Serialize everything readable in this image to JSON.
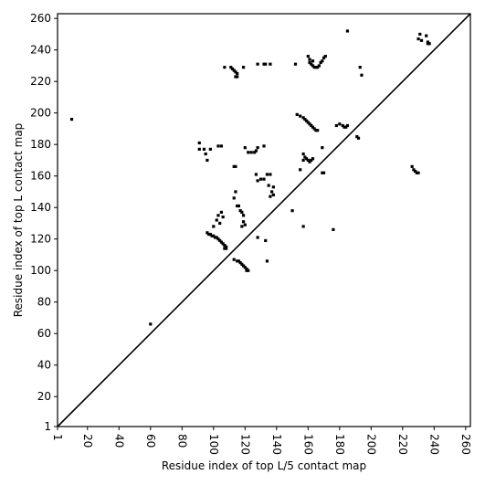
{
  "chart_data": {
    "type": "scatter",
    "xlabel": "Residue index of top L/5 contact map",
    "ylabel": "Residue index of top L contact map",
    "xlim": [
      1,
      263
    ],
    "ylim": [
      1,
      263
    ],
    "xticks": [
      1,
      20,
      40,
      60,
      80,
      100,
      120,
      140,
      160,
      180,
      200,
      220,
      240,
      260
    ],
    "yticks": [
      1,
      20,
      40,
      60,
      80,
      100,
      120,
      140,
      160,
      180,
      200,
      220,
      240,
      260
    ],
    "series": [
      {
        "color": "#000000",
        "marker": "square",
        "x": [
          10,
          60,
          96,
          97,
          98,
          99,
          100,
          101,
          102,
          103,
          104,
          105,
          106,
          107,
          108,
          108,
          107,
          100,
          102,
          103,
          105,
          106,
          104,
          113,
          115,
          116,
          117,
          118,
          119,
          120,
          121,
          122,
          121,
          115,
          116,
          117,
          118,
          119,
          119,
          120,
          118,
          113,
          114,
          114,
          113,
          128,
          133,
          134,
          103,
          105,
          91,
          91,
          94,
          95,
          96,
          98,
          120,
          122,
          124,
          126,
          128,
          132,
          127,
          127,
          130,
          128,
          132,
          134,
          136,
          135,
          137,
          138,
          138,
          136,
          150,
          153,
          155,
          157,
          158,
          159,
          160,
          161,
          162,
          163,
          164,
          165,
          166,
          157,
          158,
          159,
          160,
          161,
          162,
          163,
          157,
          155,
          169,
          169,
          170,
          157,
          176,
          160,
          161,
          161,
          162,
          163,
          164,
          165,
          166,
          167,
          168,
          169,
          170,
          171,
          163,
          128,
          132,
          133,
          136,
          152,
          107,
          111,
          112,
          113,
          114,
          115,
          115,
          114,
          119,
          185,
          193,
          194,
          178,
          180,
          182,
          183,
          184,
          185,
          191,
          192,
          226,
          227,
          228,
          229,
          230,
          230,
          231,
          232,
          235,
          236,
          236,
          237
        ],
        "values": [
          196,
          66,
          124,
          123,
          123,
          122,
          122,
          121,
          121,
          120,
          119,
          118,
          117,
          116,
          115,
          114,
          114,
          128,
          132,
          135,
          137,
          134,
          130,
          107,
          106,
          106,
          105,
          104,
          103,
          102,
          101,
          100,
          100,
          141,
          141,
          138,
          137,
          135,
          131,
          129,
          128,
          166,
          166,
          150,
          146,
          121,
          119,
          106,
          179,
          179,
          181,
          177,
          177,
          174,
          170,
          177,
          178,
          175,
          175,
          175,
          178,
          179,
          176,
          161,
          158,
          157,
          158,
          161,
          161,
          154,
          150,
          148,
          153,
          147,
          138,
          199,
          198,
          197,
          196,
          195,
          194,
          193,
          192,
          191,
          190,
          189,
          189,
          174,
          172,
          171,
          170,
          169,
          170,
          171,
          170,
          164,
          178,
          162,
          162,
          128,
          126,
          236,
          234,
          232,
          231,
          230,
          229,
          229,
          229,
          230,
          232,
          233,
          235,
          236,
          233,
          231,
          231,
          231,
          231,
          231,
          229,
          229,
          228,
          227,
          226,
          225,
          223,
          223,
          229,
          252,
          229,
          224,
          192,
          193,
          192,
          191,
          191,
          192,
          185,
          184,
          166,
          164,
          163,
          162,
          162,
          247,
          250,
          246,
          249,
          245,
          244,
          244
        ]
      },
      {
        "color": "#000000",
        "marker": "line",
        "x": [
          1,
          263
        ],
        "values": [
          1,
          263
        ]
      }
    ]
  }
}
